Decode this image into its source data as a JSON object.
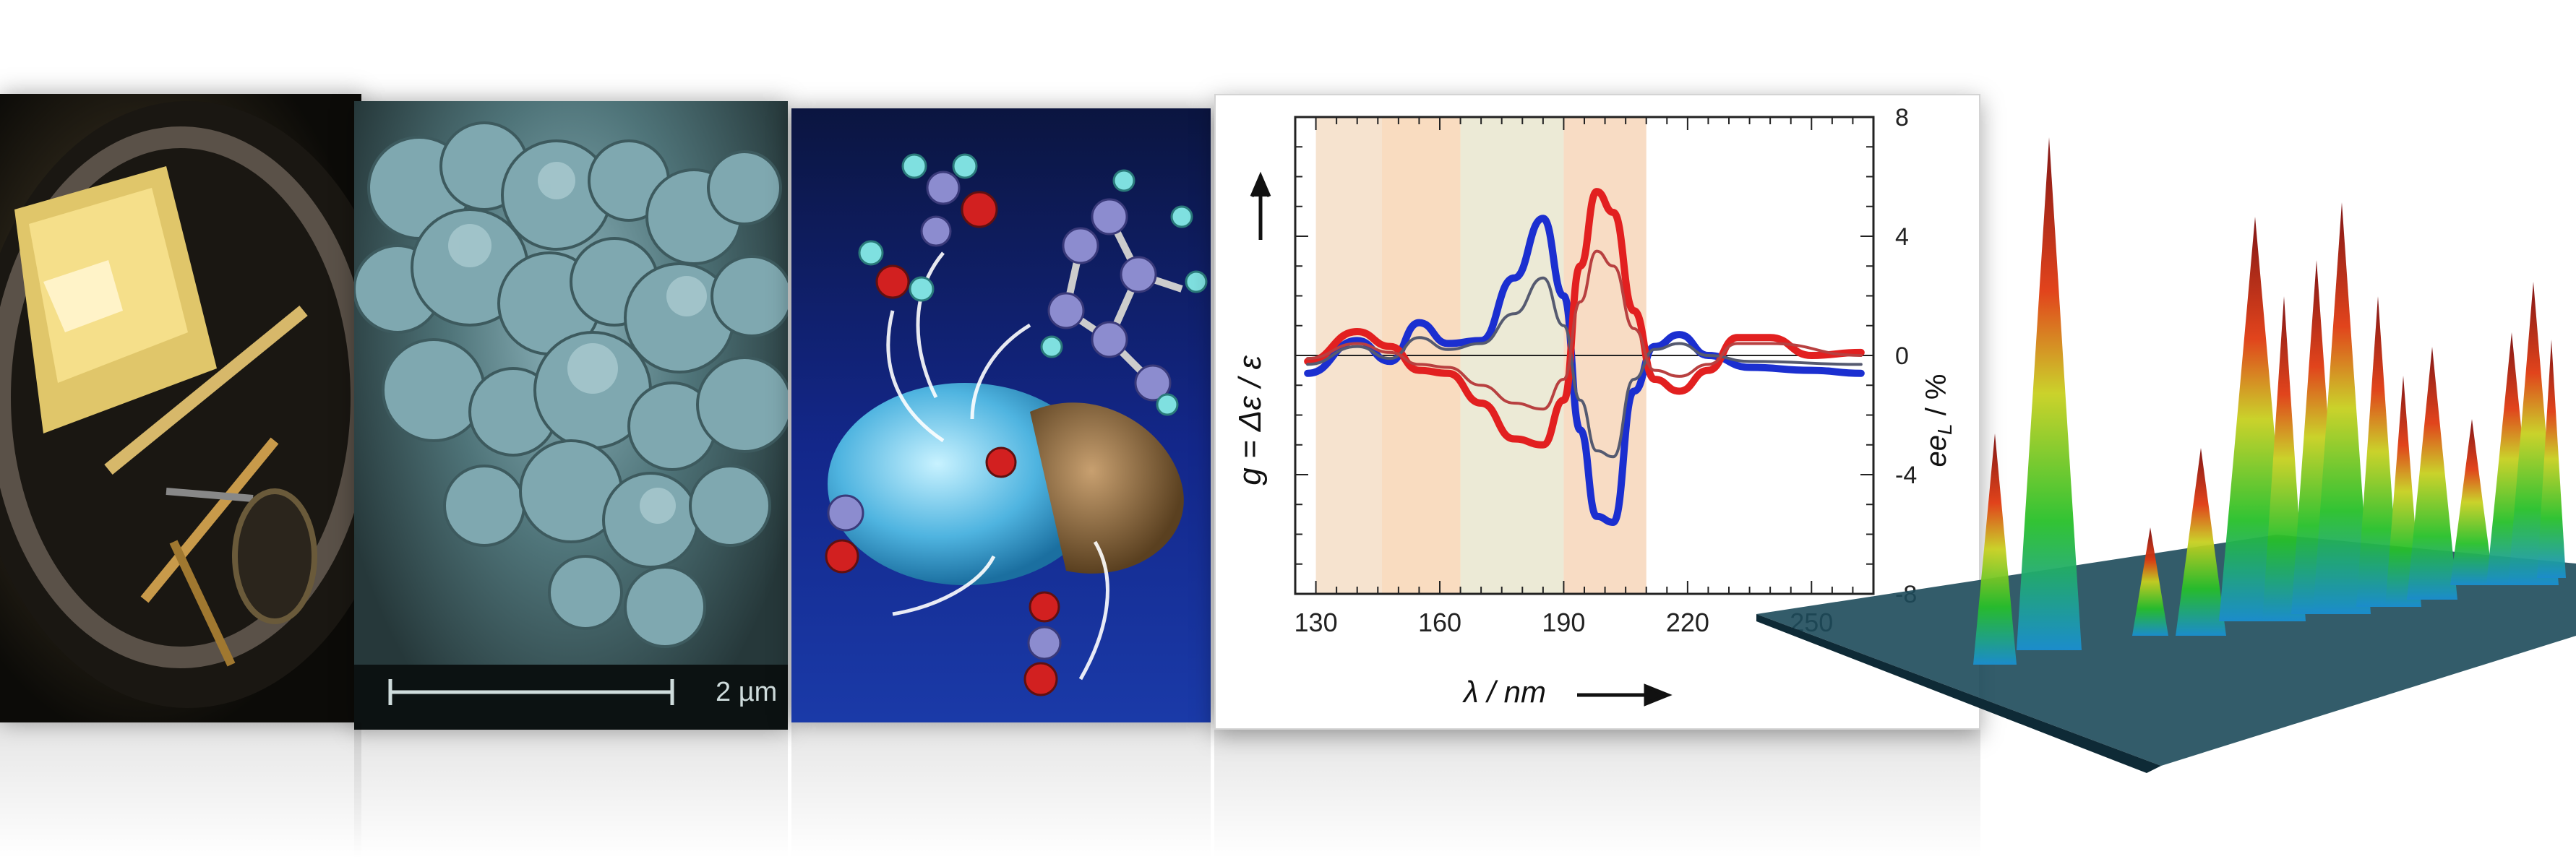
{
  "panels": {
    "microscope_photo": {},
    "sem_image": {
      "scale_bar_label": "2 µm"
    },
    "molecule_illustration": {},
    "cd_chart": {
      "y_label_left": "g = Δε / ε",
      "y_label_right_main": "ee",
      "y_label_right_sub": "L",
      "y_label_right_unit": " / %",
      "x_label": "λ / nm"
    },
    "chromatogram_3d": {}
  },
  "chart_data": {
    "type": "line",
    "xlabel": "λ / nm",
    "ylabel": "g = Δε / ε",
    "ylabel_right": "ee_L / %",
    "xlim": [
      125,
      265
    ],
    "ylim_right": [
      -8,
      8
    ],
    "x_ticks": [
      "130",
      "160",
      "190",
      "220",
      "250"
    ],
    "y_right_ticks": [
      "8",
      "4",
      "0",
      "-4",
      "-8"
    ],
    "shaded_bands_nm": [
      [
        130,
        146
      ],
      [
        146,
        165
      ],
      [
        165,
        190
      ],
      [
        190,
        210
      ]
    ],
    "band_colors": [
      "#f6e3cf",
      "#f9dcc0",
      "#ecead6",
      "#f8dcc4"
    ],
    "series": [
      {
        "color": "#1b2fd0",
        "values": [
          [
            128,
            -0.6
          ],
          [
            140,
            0.5
          ],
          [
            148,
            -0.2
          ],
          [
            155,
            1.1
          ],
          [
            162,
            0.4
          ],
          [
            170,
            0.5
          ],
          [
            178,
            2.6
          ],
          [
            185,
            4.6
          ],
          [
            190,
            2.0
          ],
          [
            194,
            -2.5
          ],
          [
            198,
            -5.4
          ],
          [
            202,
            -5.6
          ],
          [
            207,
            -1.2
          ],
          [
            212,
            0.3
          ],
          [
            218,
            0.7
          ],
          [
            225,
            0.0
          ],
          [
            235,
            -0.4
          ],
          [
            250,
            -0.5
          ],
          [
            262,
            -0.6
          ]
        ]
      },
      {
        "color": "#e22020",
        "values": [
          [
            128,
            -0.2
          ],
          [
            140,
            0.8
          ],
          [
            148,
            0.3
          ],
          [
            155,
            -0.5
          ],
          [
            162,
            -0.6
          ],
          [
            170,
            -1.6
          ],
          [
            178,
            -2.8
          ],
          [
            185,
            -3.0
          ],
          [
            190,
            -1.5
          ],
          [
            194,
            3.0
          ],
          [
            198,
            5.5
          ],
          [
            202,
            4.8
          ],
          [
            207,
            1.5
          ],
          [
            212,
            -0.8
          ],
          [
            218,
            -1.2
          ],
          [
            225,
            -0.5
          ],
          [
            232,
            0.6
          ],
          [
            240,
            0.6
          ],
          [
            250,
            0.0
          ],
          [
            262,
            0.1
          ]
        ]
      },
      {
        "color": "#555a70",
        "values": [
          [
            128,
            -0.3
          ],
          [
            140,
            0.3
          ],
          [
            148,
            -0.1
          ],
          [
            155,
            0.6
          ],
          [
            162,
            0.2
          ],
          [
            170,
            0.4
          ],
          [
            178,
            1.4
          ],
          [
            185,
            2.6
          ],
          [
            190,
            1.0
          ],
          [
            194,
            -1.5
          ],
          [
            198,
            -3.2
          ],
          [
            202,
            -3.4
          ],
          [
            207,
            -0.8
          ],
          [
            212,
            0.2
          ],
          [
            218,
            0.4
          ],
          [
            225,
            0.0
          ],
          [
            235,
            -0.2
          ],
          [
            262,
            -0.3
          ]
        ]
      },
      {
        "color": "#b84040",
        "values": [
          [
            128,
            -0.1
          ],
          [
            140,
            0.4
          ],
          [
            148,
            0.1
          ],
          [
            155,
            -0.3
          ],
          [
            162,
            -0.4
          ],
          [
            170,
            -1.0
          ],
          [
            178,
            -1.6
          ],
          [
            185,
            -1.8
          ],
          [
            190,
            -0.8
          ],
          [
            194,
            1.8
          ],
          [
            198,
            3.5
          ],
          [
            202,
            3.0
          ],
          [
            207,
            0.9
          ],
          [
            212,
            -0.5
          ],
          [
            218,
            -0.7
          ],
          [
            225,
            -0.3
          ],
          [
            232,
            0.4
          ],
          [
            240,
            0.4
          ],
          [
            262,
            0.0
          ]
        ]
      }
    ]
  }
}
